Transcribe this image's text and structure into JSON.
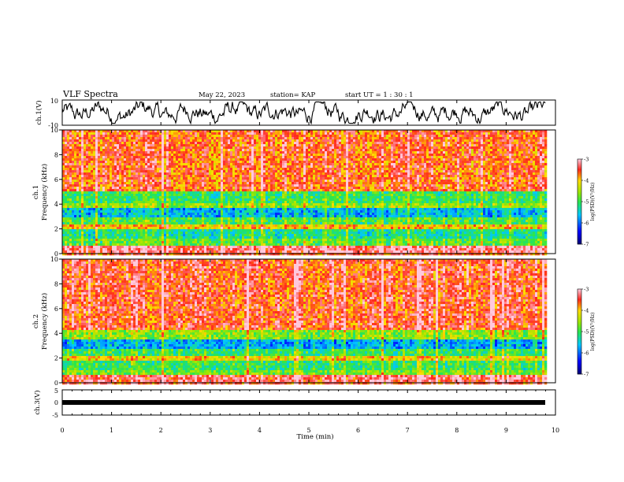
{
  "header": {
    "title": "VLF Spectra",
    "date": "May 22, 2023",
    "station": "station= KAP",
    "start": "start UT =  1 : 30 : 1"
  },
  "chart_data": [
    {
      "type": "line",
      "ylabel": "ch.1(V)",
      "ylim": [
        -10,
        10
      ],
      "y_ticks": [
        "10",
        "-10"
      ],
      "xlim": [
        0,
        10
      ],
      "description": "voltage waveform ch.1 oscillating roughly between -8 and 8 V over 0 to 9.8 min"
    },
    {
      "type": "heatmap",
      "ylabel_line1": "ch.1",
      "ylabel_line2": "Frequency (kHz)",
      "ylim": [
        0,
        10
      ],
      "y_ticks": [
        "0",
        "2",
        "4",
        "6",
        "8",
        "10"
      ],
      "xlim": [
        0,
        10
      ],
      "bands": [
        {
          "from": 0,
          "to": 0.7,
          "level": -3.2
        },
        {
          "from": 0.7,
          "to": 1.3,
          "level": -4.8
        },
        {
          "from": 1.3,
          "to": 1.9,
          "level": -5.2
        },
        {
          "from": 1.9,
          "to": 2.4,
          "level": -4.0
        },
        {
          "from": 2.4,
          "to": 2.9,
          "level": -4.9
        },
        {
          "from": 2.9,
          "to": 3.6,
          "level": -5.6
        },
        {
          "from": 3.6,
          "to": 4.1,
          "level": -4.6
        },
        {
          "from": 4.1,
          "to": 5.1,
          "level": -5.0
        },
        {
          "from": 5.1,
          "to": 10,
          "level": -3.6
        }
      ],
      "colorbar": {
        "label": "log(PSD)(V²/Hz)",
        "range": [
          -7,
          -3
        ],
        "ticks": [
          "-3",
          "-4",
          "-5",
          "-6",
          "-7"
        ]
      }
    },
    {
      "type": "heatmap",
      "ylabel_line1": "ch.2",
      "ylabel_line2": "Frequency (kHz)",
      "ylim": [
        0,
        10
      ],
      "y_ticks": [
        "0",
        "2",
        "4",
        "6",
        "8",
        "10"
      ],
      "xlim": [
        0,
        10
      ],
      "bands": [
        {
          "from": 0,
          "to": 0.6,
          "level": -3.3
        },
        {
          "from": 0.6,
          "to": 1.1,
          "level": -4.7
        },
        {
          "from": 1.1,
          "to": 1.8,
          "level": -5.0
        },
        {
          "from": 1.8,
          "to": 2.1,
          "level": -4.1
        },
        {
          "from": 2.1,
          "to": 2.8,
          "level": -5.0
        },
        {
          "from": 2.8,
          "to": 3.5,
          "level": -5.7
        },
        {
          "from": 3.5,
          "to": 4.3,
          "level": -4.6
        },
        {
          "from": 4.3,
          "to": 10,
          "level": -3.5
        }
      ],
      "colorbar": {
        "label": "log(PSD)(V²/Hz)",
        "range": [
          -7,
          -3
        ],
        "ticks": [
          "-3",
          "-4",
          "-5",
          "-6",
          "-7"
        ]
      }
    },
    {
      "type": "line",
      "ylabel": "ch.3(V)",
      "ylim": [
        -5,
        5
      ],
      "y_ticks": [
        "5",
        "0",
        "-5"
      ],
      "xlabel": "Time (min)",
      "xlim": [
        0,
        10
      ],
      "x_ticks": [
        "0",
        "1",
        "2",
        "3",
        "4",
        "5",
        "6",
        "7",
        "8",
        "9",
        "10"
      ],
      "description": "thick near-constant band around -2 V from 0 to 9.8 min"
    }
  ],
  "colors": {
    "axis": "#000000",
    "trace": "#000000"
  }
}
